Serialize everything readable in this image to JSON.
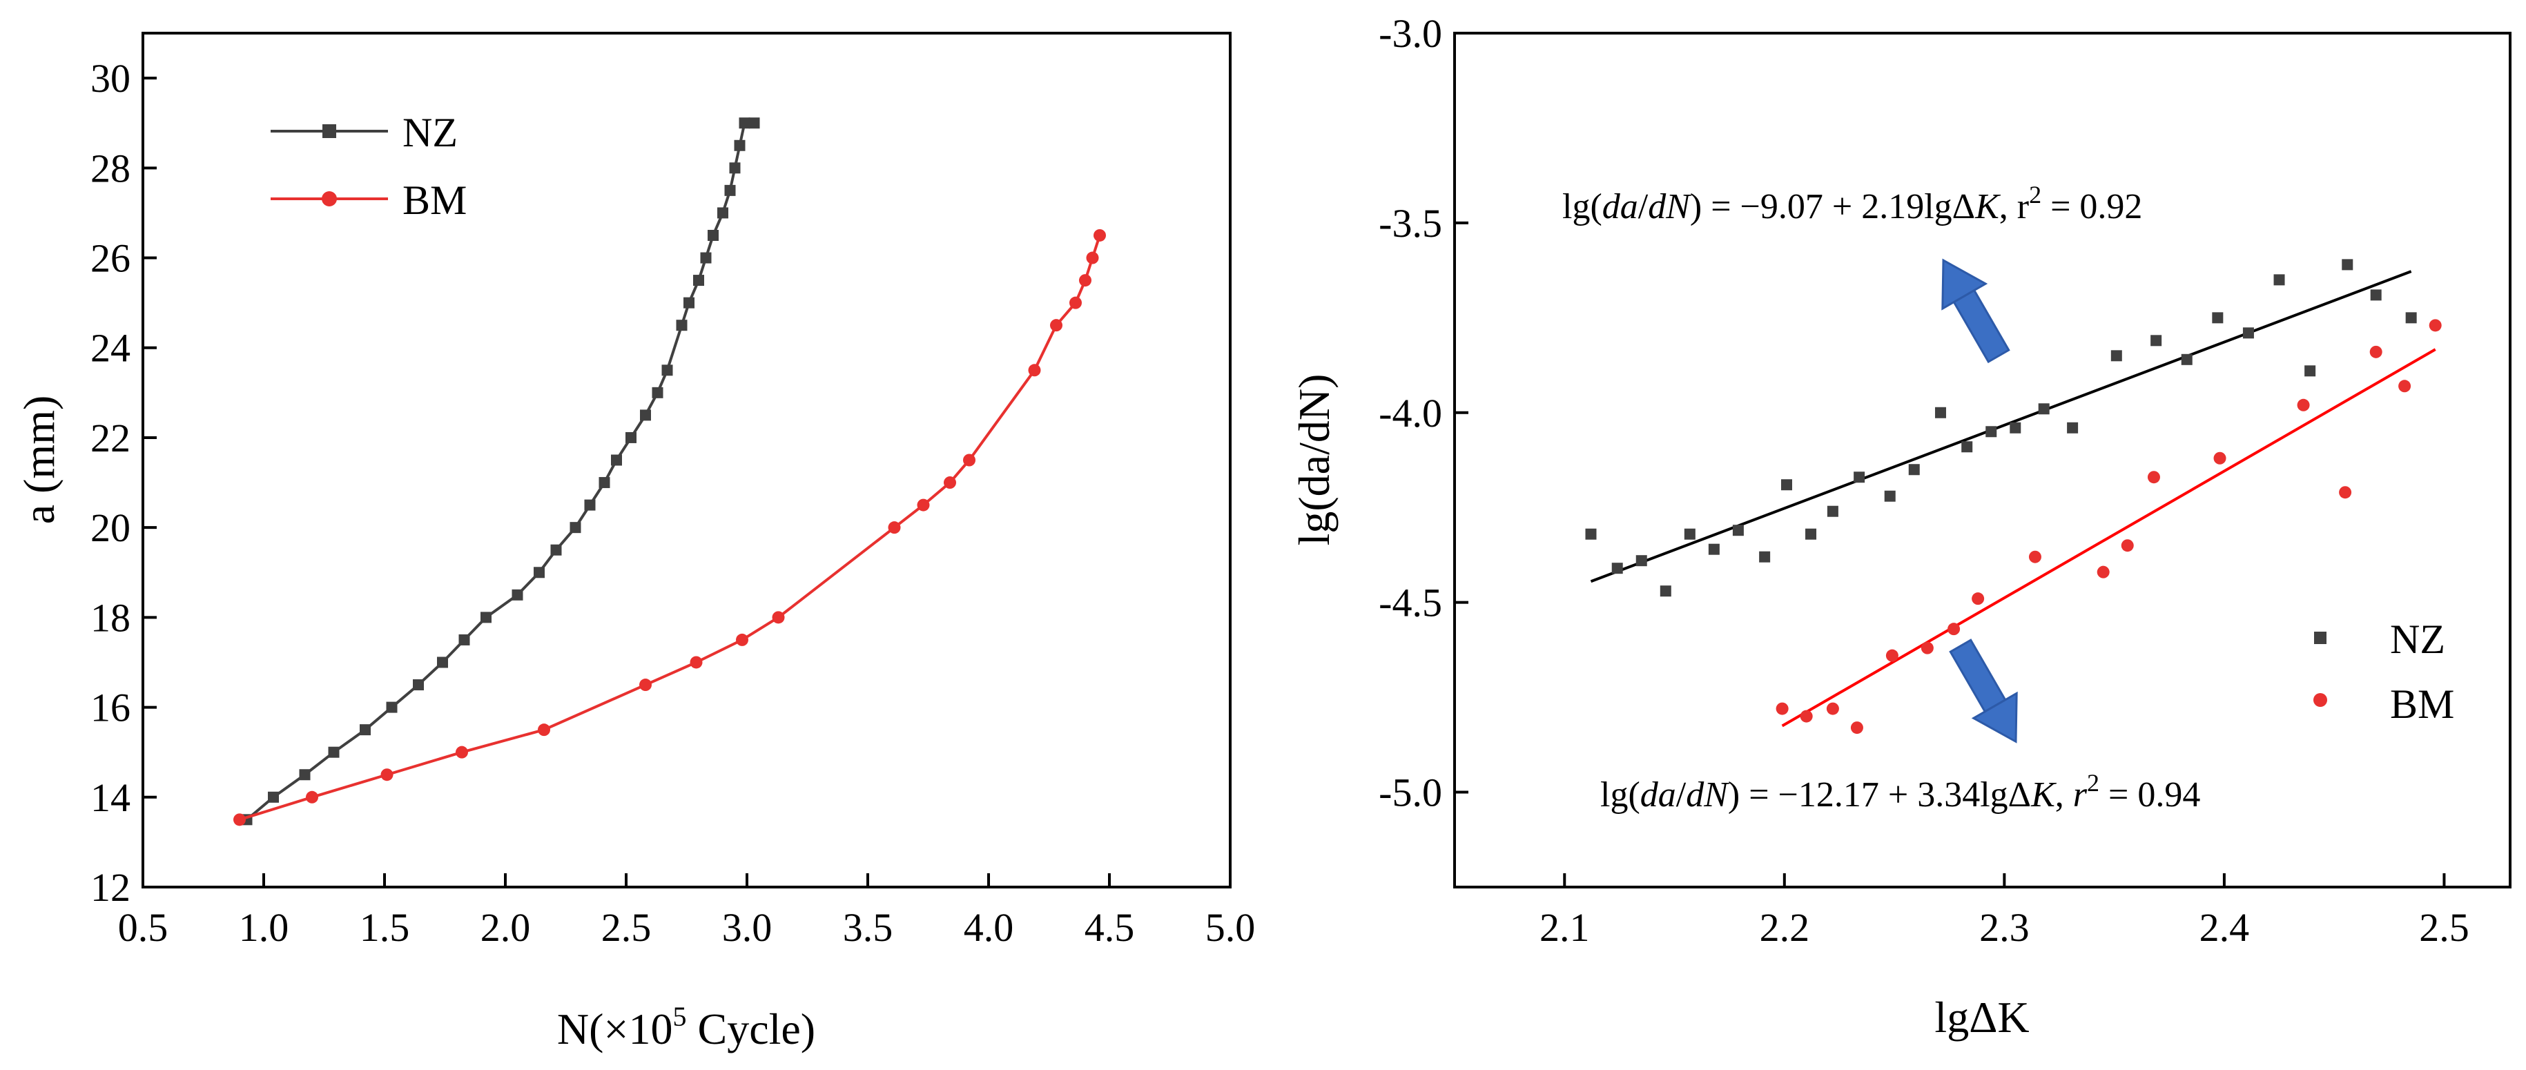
{
  "chart_data": [
    {
      "type": "line",
      "xlabel": "N(×10⁵ Cycle)",
      "xlabel_parts": {
        "pre": "N(×10",
        "sup": "5",
        "post": " Cycle)"
      },
      "ylabel": "a (mm)",
      "xlim": [
        0.5,
        5.0
      ],
      "ylim": [
        12,
        31
      ],
      "xticks": [
        0.5,
        1.0,
        1.5,
        2.0,
        2.5,
        3.0,
        3.5,
        4.0,
        4.5,
        5.0
      ],
      "xtick_labels": [
        "0.5",
        "1.0",
        "1.5",
        "2.0",
        "2.5",
        "3.0",
        "3.5",
        "4.0",
        "4.5",
        "5.0"
      ],
      "yticks": [
        12,
        14,
        16,
        18,
        20,
        22,
        24,
        26,
        28,
        30
      ],
      "ytick_labels": [
        "12",
        "14",
        "16",
        "18",
        "20",
        "22",
        "24",
        "26",
        "28",
        "30"
      ],
      "grid": false,
      "legend_position": "top-left",
      "series": [
        {
          "name": "NZ",
          "color": "#404040",
          "marker": "square",
          "x": [
            0.93,
            1.04,
            1.17,
            1.29,
            1.42,
            1.53,
            1.64,
            1.74,
            1.83,
            1.92,
            2.05,
            2.14,
            2.21,
            2.29,
            2.35,
            2.41,
            2.46,
            2.52,
            2.58,
            2.63,
            2.67,
            2.73,
            2.76,
            2.8,
            2.83,
            2.86,
            2.9,
            2.93,
            2.95,
            2.97,
            2.99,
            3.03
          ],
          "y": [
            13.5,
            14.0,
            14.5,
            15.0,
            15.5,
            16.0,
            16.5,
            17.0,
            17.5,
            18.0,
            18.5,
            19.0,
            19.5,
            20.0,
            20.5,
            21.0,
            21.5,
            22.0,
            22.5,
            23.0,
            23.5,
            24.5,
            25.0,
            25.5,
            26.0,
            26.5,
            27.0,
            27.5,
            28.0,
            28.5,
            29.0,
            29.0
          ]
        },
        {
          "name": "BM",
          "color": "#e8312f",
          "marker": "circle",
          "x": [
            0.9,
            1.2,
            1.51,
            1.82,
            2.16,
            2.58,
            2.79,
            2.98,
            3.13,
            3.61,
            3.73,
            3.84,
            3.92,
            4.19,
            4.28,
            4.36,
            4.4,
            4.43,
            4.46
          ],
          "y": [
            13.5,
            14.0,
            14.5,
            15.0,
            15.5,
            16.5,
            17.0,
            17.5,
            18.0,
            20.0,
            20.5,
            21.0,
            21.5,
            23.5,
            24.5,
            25.0,
            25.5,
            26.0,
            26.5
          ]
        }
      ]
    },
    {
      "type": "scatter",
      "xlabel": "lgΔK",
      "ylabel": "lg(da/dN)",
      "xlim": [
        2.05,
        2.53
      ],
      "ylim": [
        -5.25,
        -3.0
      ],
      "xticks": [
        2.1,
        2.2,
        2.3,
        2.4,
        2.5
      ],
      "xtick_labels": [
        "2.1",
        "2.2",
        "2.3",
        "2.4",
        "2.5"
      ],
      "yticks": [
        -5.0,
        -4.5,
        -4.0,
        -3.5,
        -3.0
      ],
      "ytick_labels": [
        "-5.0",
        "-4.5",
        "-4.0",
        "-3.5",
        "-3.0"
      ],
      "grid": false,
      "legend_position": "bottom-right",
      "series": [
        {
          "name": "NZ",
          "color": "#404040",
          "marker": "square",
          "x": [
            2.112,
            2.124,
            2.135,
            2.146,
            2.157,
            2.168,
            2.179,
            2.191,
            2.201,
            2.212,
            2.222,
            2.234,
            2.248,
            2.259,
            2.271,
            2.283,
            2.294,
            2.305,
            2.318,
            2.331,
            2.351,
            2.369,
            2.383,
            2.397,
            2.411,
            2.425,
            2.439,
            2.456,
            2.469,
            2.485
          ],
          "y": [
            -4.32,
            -4.41,
            -4.39,
            -4.47,
            -4.32,
            -4.36,
            -4.31,
            -4.38,
            -4.19,
            -4.32,
            -4.26,
            -4.17,
            -4.22,
            -4.15,
            -4.0,
            -4.09,
            -4.05,
            -4.04,
            -3.99,
            -4.04,
            -3.85,
            -3.81,
            -3.86,
            -3.75,
            -3.79,
            -3.65,
            -3.89,
            -3.61,
            -3.69,
            -3.75
          ]
        },
        {
          "name": "BM",
          "color": "#e8312f",
          "marker": "circle",
          "x": [
            2.199,
            2.21,
            2.222,
            2.233,
            2.249,
            2.265,
            2.277,
            2.288,
            2.314,
            2.345,
            2.356,
            2.368,
            2.398,
            2.436,
            2.455,
            2.469,
            2.482,
            2.496
          ],
          "y": [
            -4.78,
            -4.8,
            -4.78,
            -4.83,
            -4.64,
            -4.62,
            -4.57,
            -4.49,
            -4.38,
            -4.42,
            -4.35,
            -4.17,
            -4.12,
            -3.98,
            -4.21,
            -3.84,
            -3.93,
            -3.77
          ]
        }
      ],
      "fits": [
        {
          "name": "NZ fit",
          "color": "#000000",
          "intercept": -9.07,
          "slope": 2.19,
          "x_range": [
            2.112,
            2.485
          ]
        },
        {
          "name": "BM fit",
          "color": "#ff0000",
          "intercept": -12.17,
          "slope": 3.34,
          "x_range": [
            2.199,
            2.496
          ]
        }
      ],
      "annotations": [
        {
          "name": "nz-equation",
          "parts": {
            "a": "lg(",
            "b": "da",
            "c": "/",
            "d": "dN",
            "e": ") = −9.07 + 2.19lgΔ",
            "f": "K",
            "g": ", r",
            "h": "2",
            "i": " = 0.92"
          }
        },
        {
          "name": "bm-equation",
          "parts": {
            "a": "lg(",
            "b": "da",
            "c": "/",
            "d": "dN",
            "e": ") = −12.17 + 3.34lgΔ",
            "f": "K",
            "g": ", ",
            "r": "r",
            "h": "2",
            "i": " = 0.94"
          }
        }
      ],
      "arrows": [
        {
          "name": "up-arrow",
          "color": "#3b6fc4",
          "direction": "up-left"
        },
        {
          "name": "down-arrow",
          "color": "#3b6fc4",
          "direction": "down-right"
        }
      ]
    }
  ]
}
